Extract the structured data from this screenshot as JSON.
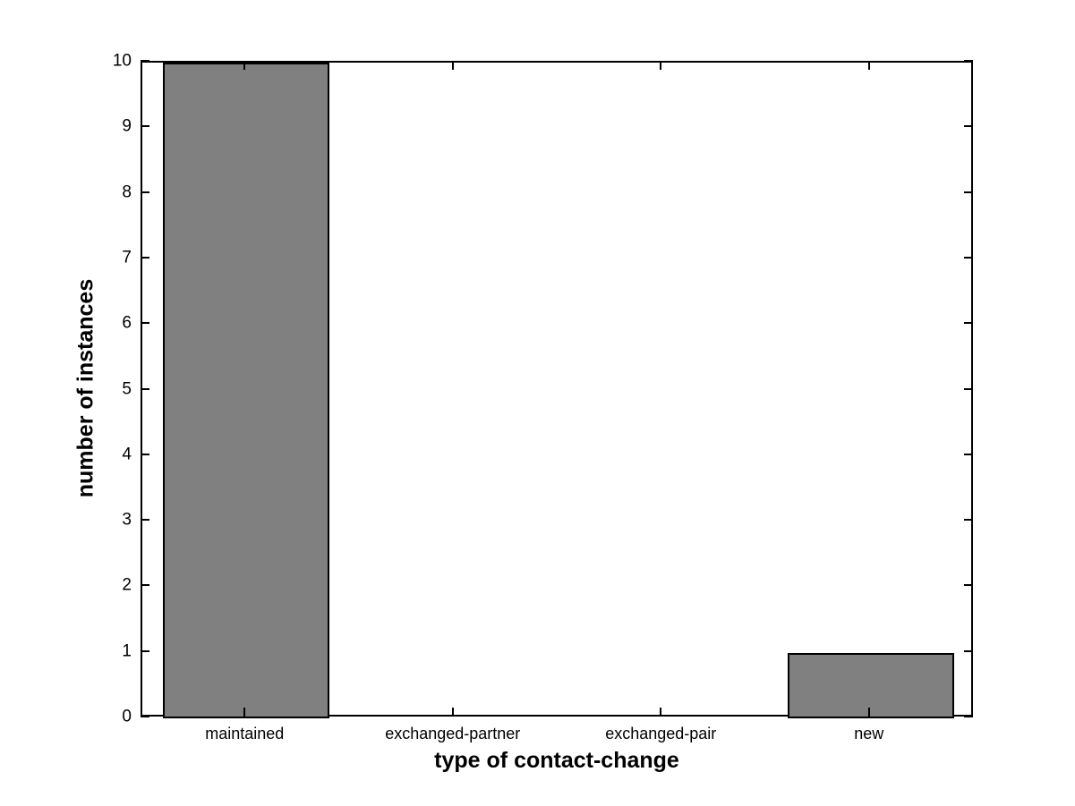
{
  "figure": {
    "background_color": "#ffffff",
    "text_color": "#000000"
  },
  "chart_data": {
    "type": "bar",
    "categories": [
      "maintained",
      "exchanged-partner",
      "exchanged-pair",
      "new"
    ],
    "values": [
      10,
      0,
      0,
      1
    ],
    "title": "",
    "xlabel": "type of contact-change",
    "ylabel": "number of instances",
    "ylim": [
      0,
      10
    ],
    "yticks": [
      0,
      1,
      2,
      3,
      4,
      5,
      6,
      7,
      8,
      9,
      10
    ],
    "bar_width_fraction": 0.8,
    "bar_color": "#808080",
    "bar_edge_color": "#000000",
    "axis_color": "#000000",
    "grid": false,
    "legend_position": "none",
    "tick_style": "inward-mirrored-box"
  }
}
